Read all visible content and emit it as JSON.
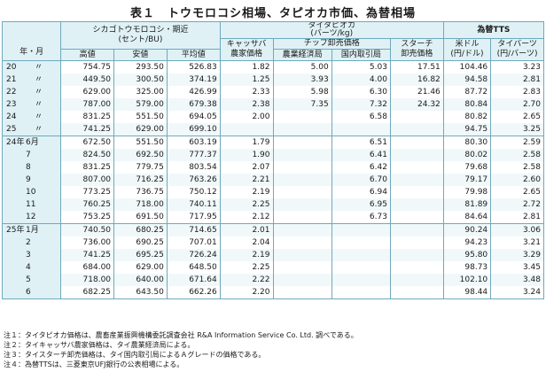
{
  "title": "表１　トウモロコシ相場、タピオカ市価、為替相場",
  "headers": {
    "ym": "年・月",
    "corn_group": "シカゴトウモロコシ・期近\n(セント/BU)",
    "corn_high": "高値",
    "corn_low": "安値",
    "corn_avg": "平均値",
    "tapioca_group": "タイタピオカ\n(バーツ/kg)",
    "cassava": "キャッサバ\n農家価格",
    "chip_group": "チップ卸売価格",
    "chip_farm": "農業経済局",
    "chip_domestic": "国内取引局",
    "starch": "スターチ\n卸売価格",
    "fx_group": "為替TTS",
    "usd": "米ドル\n(円/ドル)",
    "baht": "タイバーツ\n(円/バーツ)"
  },
  "groups": [
    {
      "rows": [
        {
          "year": "20",
          "month": "",
          "ditto": "〃",
          "high": "754.75",
          "low": "293.50",
          "avg": "526.83",
          "cassava": "1.82",
          "chip_farm": "5.00",
          "chip_dom": "5.03",
          "starch": "17.51",
          "usd": "104.46",
          "baht": "3.23"
        },
        {
          "year": "21",
          "month": "",
          "ditto": "〃",
          "high": "449.50",
          "low": "300.50",
          "avg": "374.19",
          "cassava": "1.25",
          "chip_farm": "3.93",
          "chip_dom": "4.00",
          "starch": "16.82",
          "usd": "94.58",
          "baht": "2.81"
        },
        {
          "year": "22",
          "month": "",
          "ditto": "〃",
          "high": "629.00",
          "low": "325.00",
          "avg": "426.99",
          "cassava": "2.33",
          "chip_farm": "5.98",
          "chip_dom": "6.30",
          "starch": "21.46",
          "usd": "87.72",
          "baht": "2.83"
        },
        {
          "year": "23",
          "month": "",
          "ditto": "〃",
          "high": "787.00",
          "low": "579.00",
          "avg": "679.38",
          "cassava": "2.38",
          "chip_farm": "7.35",
          "chip_dom": "7.32",
          "starch": "24.32",
          "usd": "80.84",
          "baht": "2.70"
        },
        {
          "year": "24",
          "month": "",
          "ditto": "〃",
          "high": "831.25",
          "low": "551.50",
          "avg": "694.05",
          "cassava": "2.00",
          "chip_farm": "",
          "chip_dom": "6.58",
          "starch": "",
          "usd": "80.82",
          "baht": "2.65"
        },
        {
          "year": "25",
          "month": "",
          "ditto": "〃",
          "high": "741.25",
          "low": "629.00",
          "avg": "699.10",
          "cassava": "",
          "chip_farm": "",
          "chip_dom": "",
          "starch": "",
          "usd": "94.75",
          "baht": "3.25"
        }
      ]
    },
    {
      "rows": [
        {
          "year": "24年",
          "month": "6月",
          "ditto": "",
          "high": "672.50",
          "low": "551.50",
          "avg": "603.19",
          "cassava": "1.79",
          "chip_farm": "",
          "chip_dom": "6.51",
          "starch": "",
          "usd": "80.30",
          "baht": "2.59"
        },
        {
          "year": "",
          "month": "7",
          "ditto": "",
          "high": "824.50",
          "low": "692.50",
          "avg": "777.37",
          "cassava": "1.90",
          "chip_farm": "",
          "chip_dom": "6.41",
          "starch": "",
          "usd": "80.02",
          "baht": "2.58"
        },
        {
          "year": "",
          "month": "8",
          "ditto": "",
          "high": "831.25",
          "low": "779.75",
          "avg": "803.54",
          "cassava": "2.07",
          "chip_farm": "",
          "chip_dom": "6.42",
          "starch": "",
          "usd": "79.68",
          "baht": "2.58"
        },
        {
          "year": "",
          "month": "9",
          "ditto": "",
          "high": "807.00",
          "low": "716.25",
          "avg": "763.26",
          "cassava": "2.21",
          "chip_farm": "",
          "chip_dom": "6.70",
          "starch": "",
          "usd": "79.17",
          "baht": "2.60"
        },
        {
          "year": "",
          "month": "10",
          "ditto": "",
          "high": "773.25",
          "low": "736.75",
          "avg": "750.12",
          "cassava": "2.19",
          "chip_farm": "",
          "chip_dom": "6.94",
          "starch": "",
          "usd": "79.98",
          "baht": "2.65"
        },
        {
          "year": "",
          "month": "11",
          "ditto": "",
          "high": "760.25",
          "low": "718.00",
          "avg": "740.11",
          "cassava": "2.25",
          "chip_farm": "",
          "chip_dom": "6.95",
          "starch": "",
          "usd": "81.89",
          "baht": "2.72"
        },
        {
          "year": "",
          "month": "12",
          "ditto": "",
          "high": "753.25",
          "low": "691.50",
          "avg": "717.95",
          "cassava": "2.12",
          "chip_farm": "",
          "chip_dom": "6.73",
          "starch": "",
          "usd": "84.64",
          "baht": "2.81"
        }
      ]
    },
    {
      "rows": [
        {
          "year": "25年",
          "month": "1月",
          "ditto": "",
          "high": "740.50",
          "low": "680.25",
          "avg": "714.65",
          "cassava": "2.01",
          "chip_farm": "",
          "chip_dom": "",
          "starch": "",
          "usd": "90.24",
          "baht": "3.06"
        },
        {
          "year": "",
          "month": "2",
          "ditto": "",
          "high": "736.00",
          "low": "690.25",
          "avg": "707.01",
          "cassava": "2.04",
          "chip_farm": "",
          "chip_dom": "",
          "starch": "",
          "usd": "94.23",
          "baht": "3.21"
        },
        {
          "year": "",
          "month": "3",
          "ditto": "",
          "high": "741.25",
          "low": "695.25",
          "avg": "726.24",
          "cassava": "2.19",
          "chip_farm": "",
          "chip_dom": "",
          "starch": "",
          "usd": "95.80",
          "baht": "3.29"
        },
        {
          "year": "",
          "month": "4",
          "ditto": "",
          "high": "684.00",
          "low": "629.00",
          "avg": "648.50",
          "cassava": "2.25",
          "chip_farm": "",
          "chip_dom": "",
          "starch": "",
          "usd": "98.73",
          "baht": "3.45"
        },
        {
          "year": "",
          "month": "5",
          "ditto": "",
          "high": "718.00",
          "low": "640.00",
          "avg": "671.64",
          "cassava": "2.22",
          "chip_farm": "",
          "chip_dom": "",
          "starch": "",
          "usd": "102.10",
          "baht": "3.48"
        },
        {
          "year": "",
          "month": "6",
          "ditto": "",
          "high": "682.25",
          "low": "643.50",
          "avg": "662.26",
          "cassava": "2.20",
          "chip_farm": "",
          "chip_dom": "",
          "starch": "",
          "usd": "98.44",
          "baht": "3.24"
        }
      ]
    }
  ],
  "notes": [
    "注１：タイタピオカ価格は、農畜産業振興機構委託調査会社 R&A Information Service Co. Ltd. 調べである。",
    "注２：タイキャッサバ農家価格は、タイ農業経済局による。",
    "注３：タイスターチ卸売価格は、タイ国内取引局によるＡグレードの価格である。",
    "注４：為替TTSは、三菱東京UFJ銀行の公表相場による。"
  ]
}
